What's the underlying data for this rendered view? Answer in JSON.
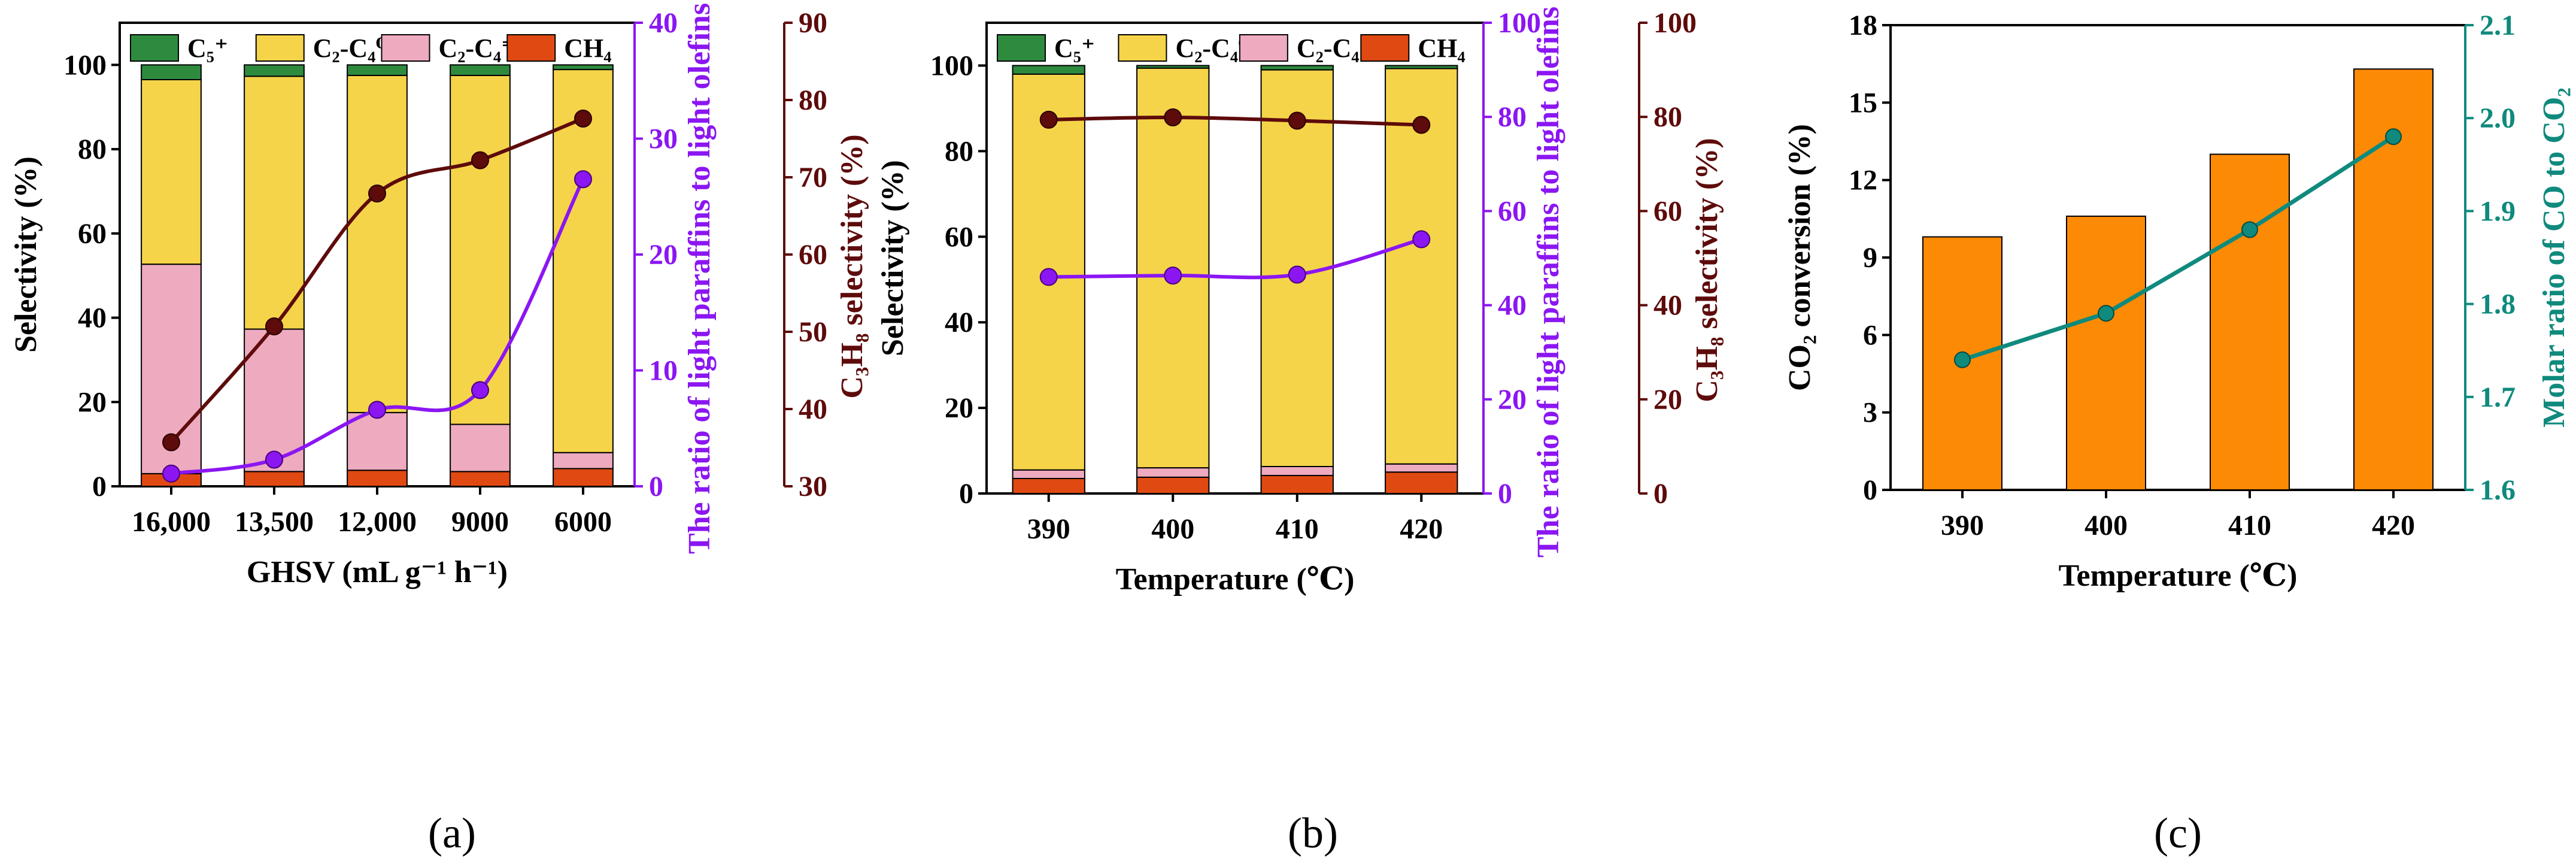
{
  "colors": {
    "c5": "#2e8b3e",
    "c2c4_0": "#f5d44a",
    "c2c4_eq": "#eeaabf",
    "ch4": "#e04a12",
    "ratio": "#8b16f2",
    "c3h8": "#5e0b0b",
    "bar_orange": "#fd8a05",
    "teal": "#0f8a7d",
    "axis": "#000000"
  },
  "chart_data": [
    {
      "type": "bar",
      "stacked": true,
      "panel_label": "(a)",
      "categories": [
        "16,000",
        "13,500",
        "12,000",
        "9000",
        "6000"
      ],
      "xlabel": "GHSV (mL g⁻¹ h⁻¹)",
      "ylabel": "Selectivity (%)",
      "ylim": [
        0,
        110
      ],
      "yticks": [
        "0",
        "20",
        "40",
        "60",
        "80",
        "100"
      ],
      "legend": [
        "C₅⁺",
        "C₂-C₄⁰",
        "C₂-C₄⁼",
        "CH₄"
      ],
      "series": [
        {
          "name": "CH4",
          "values": [
            3.0,
            3.5,
            3.8,
            3.5,
            4.2
          ]
        },
        {
          "name": "C2-C4=",
          "values": [
            49.7,
            33.8,
            13.7,
            11.2,
            3.8
          ]
        },
        {
          "name": "C2-C4_0",
          "values": [
            43.8,
            60.0,
            80.0,
            82.8,
            90.9
          ]
        },
        {
          "name": "C5+",
          "values": [
            3.5,
            2.7,
            2.5,
            2.5,
            1.1
          ]
        }
      ],
      "y2": {
        "label": "The ratio of light paraffins to light olefins",
        "lim": [
          0,
          40
        ],
        "ticks": [
          "0",
          "10",
          "20",
          "30",
          "40"
        ],
        "values": [
          1.1,
          2.3,
          6.6,
          8.3,
          26.5
        ]
      },
      "y3": {
        "label": "C₃H₈ selectivity (%)",
        "lim": [
          30,
          90
        ],
        "ticks": [
          "30",
          "40",
          "50",
          "60",
          "70",
          "80",
          "90"
        ],
        "values": [
          35.7,
          50.7,
          67.9,
          72.2,
          77.6
        ]
      }
    },
    {
      "type": "bar",
      "stacked": true,
      "panel_label": "(b)",
      "categories": [
        "390",
        "400",
        "410",
        "420"
      ],
      "xlabel": "Temperature (℃)",
      "ylabel": "Selectivity (%)",
      "ylim": [
        0,
        110
      ],
      "yticks": [
        "0",
        "20",
        "40",
        "60",
        "80",
        "100"
      ],
      "legend": [
        "C₅⁺",
        "C₂-C₄⁰",
        "C₂-C₄⁼",
        "CH₄"
      ],
      "series": [
        {
          "name": "CH4",
          "values": [
            3.5,
            3.8,
            4.2,
            5.0
          ]
        },
        {
          "name": "C2-C4=",
          "values": [
            2.0,
            2.2,
            2.1,
            1.9
          ]
        },
        {
          "name": "C2-C4_0",
          "values": [
            92.5,
            93.4,
            92.7,
            92.4
          ]
        },
        {
          "name": "C5+",
          "values": [
            2.0,
            0.6,
            1.0,
            0.7
          ]
        }
      ],
      "y2": {
        "label": "The ratio of light paraffins to light olefins",
        "lim": [
          0,
          100
        ],
        "ticks": [
          "0",
          "20",
          "40",
          "60",
          "80",
          "100"
        ],
        "values": [
          46,
          46.3,
          46.5,
          54
        ]
      },
      "y3": {
        "label": "C₃H₈ selectivity (%)",
        "lim": [
          0,
          100
        ],
        "ticks": [
          "0",
          "20",
          "40",
          "60",
          "80",
          "100"
        ],
        "values": [
          79.4,
          79.9,
          79.2,
          78.3
        ]
      }
    },
    {
      "type": "bar",
      "panel_label": "(c)",
      "categories": [
        "390",
        "400",
        "410",
        "420"
      ],
      "xlabel": "Temperature (℃)",
      "ylabel": "CO₂ conversion (%)",
      "ylim": [
        0,
        18
      ],
      "yticks": [
        "0",
        "3",
        "6",
        "9",
        "12",
        "15",
        "18"
      ],
      "values": [
        9.8,
        10.6,
        13.0,
        16.3
      ],
      "y2": {
        "label": "Molar ratio of CO to CO₂",
        "lim": [
          1.6,
          2.1
        ],
        "ticks": [
          "1.6",
          "1.7",
          "1.8",
          "1.9",
          "2.0",
          "2.1"
        ],
        "values": [
          1.74,
          1.79,
          1.88,
          1.98
        ]
      }
    }
  ]
}
